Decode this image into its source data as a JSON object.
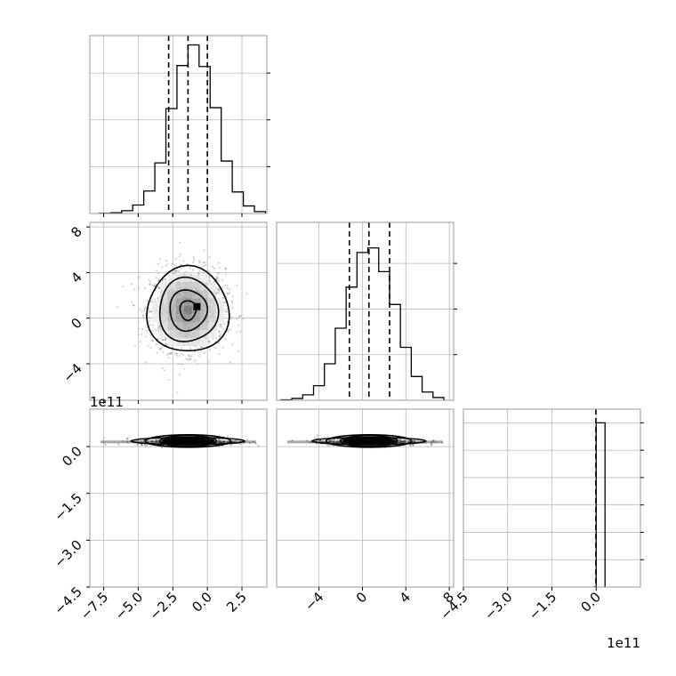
{
  "chart_data": [
    {
      "type": "histogram",
      "panel": "p00",
      "xlim": [
        -8.5,
        4.3
      ],
      "ylim": [
        0,
        1900
      ],
      "xticks": [
        -7.5,
        -5.0,
        -2.5,
        0.0,
        2.5
      ],
      "xtick_labels": [
        "−7.5",
        "−5.0",
        "−2.5",
        "0.0",
        "2.5"
      ],
      "yticks": [
        500,
        1000,
        1500
      ],
      "quantiles": [
        -2.8,
        -1.4,
        0.0
      ],
      "bin_edges": [
        -7.8,
        -7.0,
        -6.2,
        -5.4,
        -4.6,
        -3.8,
        -3.0,
        -2.2,
        -1.4,
        -0.6,
        0.2,
        1.0,
        1.8,
        2.6,
        3.4,
        4.2
      ],
      "counts": [
        2,
        8,
        30,
        90,
        240,
        540,
        1120,
        1580,
        1800,
        1570,
        1130,
        560,
        230,
        80,
        20
      ]
    },
    {
      "type": "scatter",
      "panel": "p10",
      "xlim": [
        -8.5,
        4.3
      ],
      "ylim": [
        -7.2,
        8.4
      ],
      "yticks": [
        -4,
        0,
        4,
        8
      ],
      "ytick_labels": [
        "−4",
        "0",
        "4",
        "8"
      ],
      "center": [
        -1.4,
        0.7
      ],
      "spread": [
        1.35,
        1.8
      ],
      "contour_levels": [
        0.5,
        1.0,
        1.5,
        2.0
      ]
    },
    {
      "type": "histogram",
      "panel": "p11",
      "xlim": [
        -7.9,
        8.4
      ],
      "ylim": [
        0,
        1950
      ],
      "yticks": [
        500,
        1000,
        1500
      ],
      "quantiles": [
        -1.2,
        0.6,
        2.5
      ],
      "bin_edges": [
        -7.5,
        -6.5,
        -5.5,
        -4.5,
        -3.5,
        -2.5,
        -1.5,
        -0.5,
        0.5,
        1.5,
        2.5,
        3.5,
        4.5,
        5.5,
        6.5,
        7.5
      ],
      "counts": [
        5,
        20,
        60,
        160,
        400,
        790,
        1240,
        1620,
        1670,
        1410,
        1050,
        580,
        260,
        90,
        30
      ]
    },
    {
      "type": "scatter",
      "panel": "p20",
      "xlim": [
        -8.5,
        4.3
      ],
      "ylim": [
        -4.5,
        1.2
      ],
      "yticks": [
        -4.5,
        -3.0,
        -1.5,
        0.0
      ],
      "ytick_labels": [
        "−4.5",
        "−3.0",
        "−1.5",
        "0.0"
      ],
      "offset_label": "1e11",
      "center": [
        -1.4,
        0.15
      ],
      "spread": [
        1.8,
        0.06
      ]
    },
    {
      "type": "scatter",
      "panel": "p21",
      "xlim": [
        -7.9,
        8.4
      ],
      "ylim": [
        -4.5,
        1.2
      ],
      "xticks": [
        -4,
        0,
        4,
        8
      ],
      "xtick_labels": [
        "−4",
        "0",
        "4",
        "8"
      ],
      "center": [
        0.6,
        0.15
      ],
      "spread": [
        2.4,
        0.06
      ]
    },
    {
      "type": "histogram",
      "panel": "p22",
      "xlim": [
        -4.5,
        1.5
      ],
      "ylim": [
        0,
        6500
      ],
      "xticks": [
        -4.5,
        -3.0,
        -1.5,
        0.0
      ],
      "xtick_labels": [
        "−4.5",
        "−3.0",
        "−1.5",
        "0.0"
      ],
      "yticks": [
        1000,
        2000,
        3000,
        4000,
        5000,
        6000
      ],
      "offset_label": "1e11",
      "quantiles": [
        -0.01
      ],
      "bin_edges": [
        -0.05,
        0.0,
        0.3
      ],
      "counts": [
        10,
        6000
      ]
    }
  ]
}
